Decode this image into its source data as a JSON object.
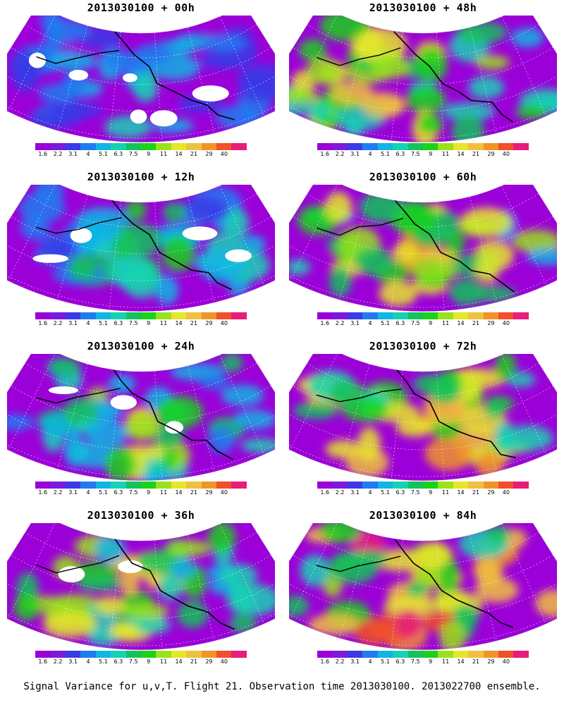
{
  "figure": {
    "caption": "Signal Variance for u,v,T. Flight 21. Observation time 2013030100. 2013022700 ensemble."
  },
  "colorbar": {
    "labels": [
      "1.6",
      "2.2",
      "3.1",
      "4",
      "5.1",
      "6.3",
      "7.5",
      "9",
      "11",
      "14",
      "21",
      "29",
      "40"
    ],
    "colors": [
      "#9b00d8",
      "#7c1ad8",
      "#3a3ae6",
      "#1f7cf0",
      "#12b4e4",
      "#16d2b4",
      "#13c25a",
      "#1ad21a",
      "#9ae21a",
      "#e6e62a",
      "#f0c040",
      "#f09428",
      "#f0502a",
      "#e81c7a"
    ]
  },
  "panels": [
    {
      "title": "2013030100 + 00h",
      "intensity": 0.15,
      "blank": 0.55
    },
    {
      "title": "2013030100 + 48h",
      "intensity": 0.62,
      "blank": 0.0
    },
    {
      "title": "2013030100 + 12h",
      "intensity": 0.3,
      "blank": 0.4
    },
    {
      "title": "2013030100 + 60h",
      "intensity": 0.7,
      "blank": 0.0
    },
    {
      "title": "2013030100 + 24h",
      "intensity": 0.42,
      "blank": 0.3
    },
    {
      "title": "2013030100 + 72h",
      "intensity": 0.78,
      "blank": 0.0
    },
    {
      "title": "2013030100 + 36h",
      "intensity": 0.52,
      "blank": 0.15
    },
    {
      "title": "2013030100 + 84h",
      "intensity": 0.85,
      "blank": 0.0
    }
  ]
}
